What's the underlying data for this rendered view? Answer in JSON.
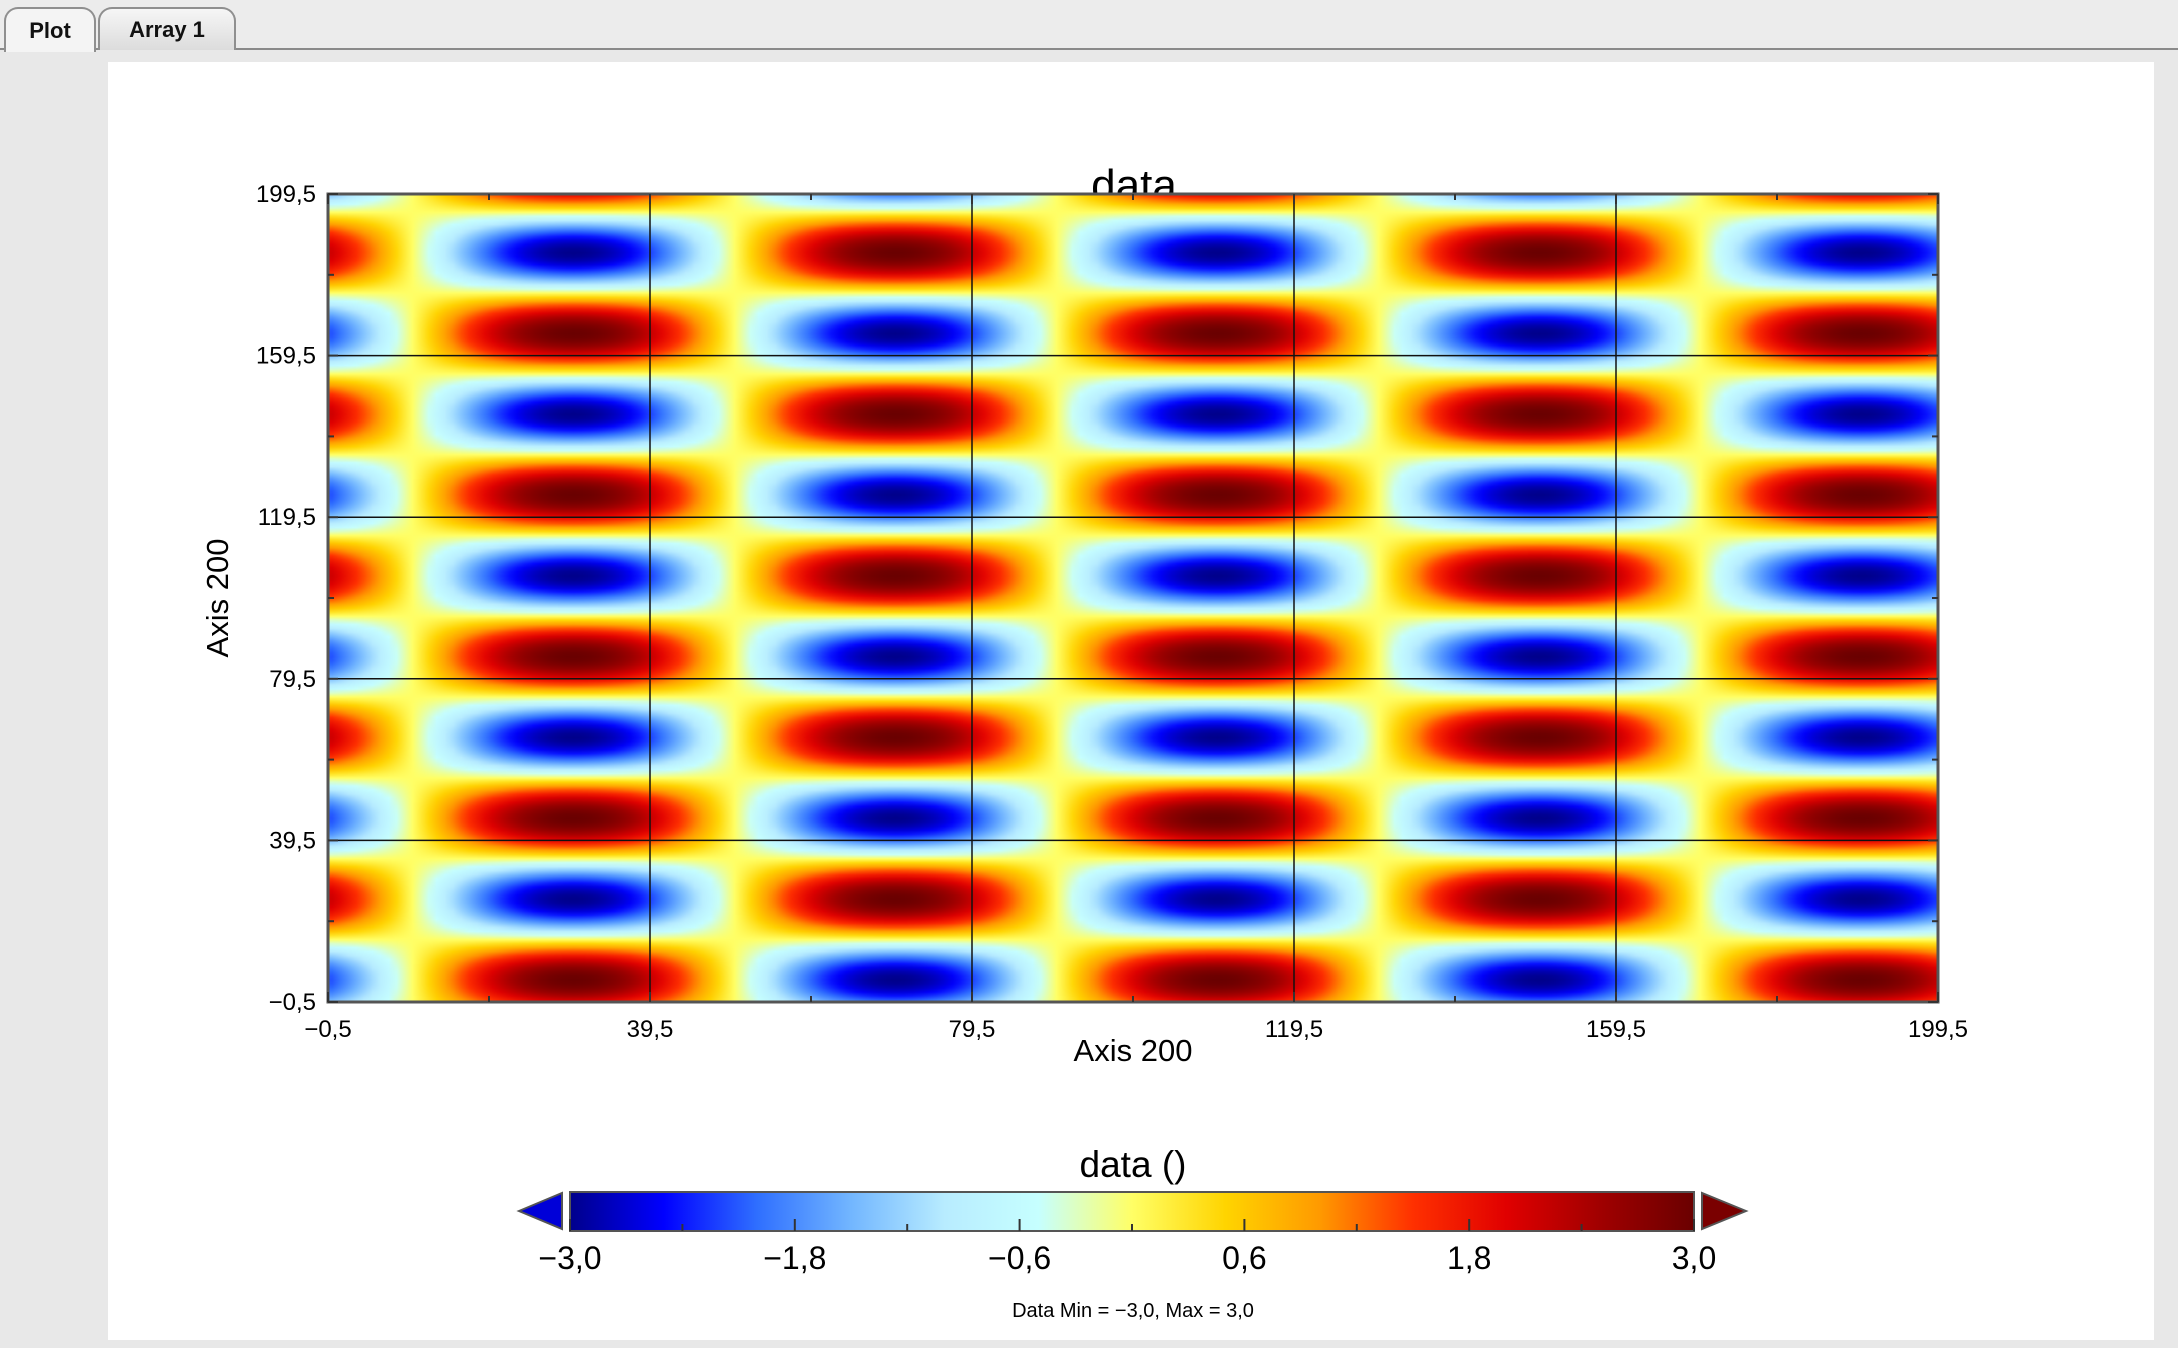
{
  "tabs": [
    {
      "label": "Plot",
      "active": true
    },
    {
      "label": "Array 1",
      "active": false
    }
  ],
  "chart_data": {
    "type": "heatmap",
    "title": "data",
    "xlabel": "Axis 200",
    "ylabel": "Axis 200",
    "xlim": [
      -0.5,
      199.5
    ],
    "ylim": [
      -0.5,
      199.5
    ],
    "x_ticks": [
      "−0,5",
      "39,5",
      "79,5",
      "119,5",
      "159,5",
      "199,5"
    ],
    "y_ticks": [
      "−0,5",
      "39,5",
      "79,5",
      "119,5",
      "159,5",
      "199,5"
    ],
    "x_tick_values": [
      -0.5,
      39.5,
      79.5,
      119.5,
      159.5,
      199.5
    ],
    "y_tick_values": [
      -0.5,
      39.5,
      79.5,
      119.5,
      159.5,
      199.5
    ],
    "grid": true,
    "colorbar": {
      "title": "data ()",
      "min": -3.0,
      "max": 3.0,
      "tick_labels": [
        "−3,0",
        "−1,8",
        "−0,6",
        "0,6",
        "1,8",
        "3,0"
      ],
      "tick_values": [
        -3.0,
        -1.8,
        -0.6,
        0.6,
        1.8,
        3.0
      ],
      "colors": [
        "#00008b",
        "#0000ff",
        "#2f6fff",
        "#72b6ff",
        "#b8ecff",
        "#c6ffff",
        "#ffff66",
        "#ffd400",
        "#ff9a00",
        "#ff3000",
        "#e00000",
        "#a00000",
        "#6a0000"
      ]
    },
    "stats_text": "Data Min = −3,0, Max = 3,0",
    "data_min": -3.0,
    "data_max": 3.0
  }
}
